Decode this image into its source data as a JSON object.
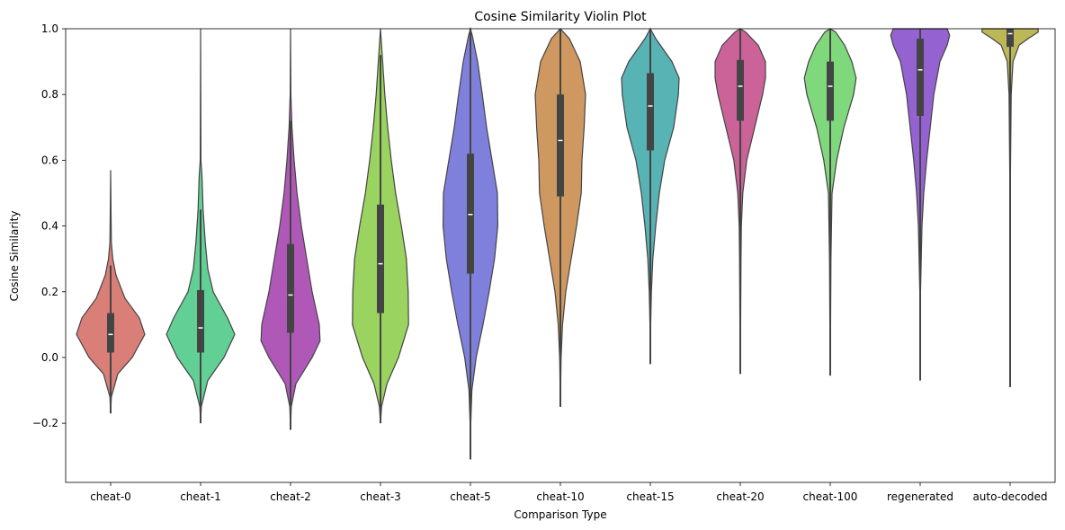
{
  "chart_data": {
    "type": "violin",
    "title": "Cosine Similarity Violin Plot",
    "xlabel": "Comparison Type",
    "ylabel": "Cosine Similarity",
    "ylim": [
      -0.38,
      1.0
    ],
    "yticks": [
      -0.2,
      0.0,
      0.2,
      0.4,
      0.6,
      0.8,
      1.0
    ],
    "ytick_labels": [
      "−0.2",
      "0.0",
      "0.2",
      "0.4",
      "0.6",
      "0.8",
      "1.0"
    ],
    "grid": false,
    "categories": [
      "cheat-0",
      "cheat-1",
      "cheat-2",
      "cheat-3",
      "cheat-5",
      "cheat-10",
      "cheat-15",
      "cheat-20",
      "cheat-100",
      "regenerated",
      "auto-decoded"
    ],
    "series": [
      {
        "name": "cheat-0",
        "color": "#d97f78",
        "min": -0.17,
        "q1": 0.015,
        "median": 0.07,
        "q3": 0.135,
        "whisker_low": -0.17,
        "whisker_high": 0.28,
        "density": [
          [
            -0.17,
            0
          ],
          [
            -0.12,
            0.02
          ],
          [
            -0.05,
            0.2
          ],
          [
            0.0,
            0.6
          ],
          [
            0.07,
            0.95
          ],
          [
            0.12,
            0.8
          ],
          [
            0.18,
            0.4
          ],
          [
            0.25,
            0.15
          ],
          [
            0.3,
            0.06
          ],
          [
            0.35,
            0.02
          ],
          [
            0.45,
            0.01
          ],
          [
            0.57,
            0
          ]
        ]
      },
      {
        "name": "cheat-1",
        "color": "#62cf95",
        "min": -0.2,
        "q1": 0.015,
        "median": 0.09,
        "q3": 0.205,
        "whisker_low": -0.2,
        "whisker_high": 0.45,
        "density": [
          [
            -0.2,
            0
          ],
          [
            -0.15,
            0.02
          ],
          [
            -0.07,
            0.2
          ],
          [
            0.0,
            0.65
          ],
          [
            0.07,
            0.95
          ],
          [
            0.12,
            0.75
          ],
          [
            0.2,
            0.35
          ],
          [
            0.27,
            0.2
          ],
          [
            0.35,
            0.13
          ],
          [
            0.45,
            0.07
          ],
          [
            0.55,
            0.04
          ],
          [
            0.6,
            0.01
          ],
          [
            0.8,
            0.005
          ],
          [
            1.0,
            0
          ]
        ]
      },
      {
        "name": "cheat-2",
        "color": "#b058b8",
        "min": -0.22,
        "q1": 0.075,
        "median": 0.19,
        "q3": 0.345,
        "whisker_low": -0.22,
        "whisker_high": 0.72,
        "density": [
          [
            -0.22,
            0
          ],
          [
            -0.15,
            0.02
          ],
          [
            -0.08,
            0.15
          ],
          [
            0.0,
            0.6
          ],
          [
            0.05,
            0.82
          ],
          [
            0.1,
            0.8
          ],
          [
            0.2,
            0.6
          ],
          [
            0.3,
            0.45
          ],
          [
            0.4,
            0.3
          ],
          [
            0.5,
            0.18
          ],
          [
            0.6,
            0.1
          ],
          [
            0.7,
            0.04
          ],
          [
            0.8,
            0.01
          ],
          [
            1.0,
            0
          ]
        ]
      },
      {
        "name": "cheat-3",
        "color": "#9ad35f",
        "min": -0.2,
        "q1": 0.135,
        "median": 0.285,
        "q3": 0.465,
        "whisker_low": -0.2,
        "whisker_high": 0.92,
        "density": [
          [
            -0.2,
            0
          ],
          [
            -0.15,
            0.03
          ],
          [
            -0.08,
            0.18
          ],
          [
            0.0,
            0.5
          ],
          [
            0.1,
            0.78
          ],
          [
            0.2,
            0.77
          ],
          [
            0.3,
            0.72
          ],
          [
            0.4,
            0.58
          ],
          [
            0.5,
            0.42
          ],
          [
            0.6,
            0.3
          ],
          [
            0.7,
            0.2
          ],
          [
            0.8,
            0.12
          ],
          [
            0.9,
            0.06
          ],
          [
            1.0,
            0
          ]
        ]
      },
      {
        "name": "cheat-5",
        "color": "#7f80dc",
        "min": -0.31,
        "q1": 0.255,
        "median": 0.435,
        "q3": 0.62,
        "whisker_low": -0.31,
        "whisker_high": 1.0,
        "density": [
          [
            -0.31,
            0
          ],
          [
            -0.2,
            0.01
          ],
          [
            -0.1,
            0.04
          ],
          [
            0.0,
            0.16
          ],
          [
            0.1,
            0.35
          ],
          [
            0.2,
            0.52
          ],
          [
            0.3,
            0.67
          ],
          [
            0.4,
            0.76
          ],
          [
            0.5,
            0.75
          ],
          [
            0.6,
            0.6
          ],
          [
            0.7,
            0.45
          ],
          [
            0.8,
            0.33
          ],
          [
            0.9,
            0.2
          ],
          [
            0.98,
            0.05
          ],
          [
            1.0,
            0
          ]
        ]
      },
      {
        "name": "cheat-10",
        "color": "#cf9860",
        "min": -0.15,
        "q1": 0.49,
        "median": 0.66,
        "q3": 0.8,
        "whisker_low": -0.15,
        "whisker_high": 1.0,
        "density": [
          [
            -0.15,
            0
          ],
          [
            0.0,
            0.02
          ],
          [
            0.1,
            0.06
          ],
          [
            0.2,
            0.15
          ],
          [
            0.3,
            0.3
          ],
          [
            0.4,
            0.45
          ],
          [
            0.5,
            0.58
          ],
          [
            0.6,
            0.6
          ],
          [
            0.7,
            0.66
          ],
          [
            0.8,
            0.7
          ],
          [
            0.9,
            0.55
          ],
          [
            0.97,
            0.25
          ],
          [
            1.0,
            0
          ]
        ]
      },
      {
        "name": "cheat-15",
        "color": "#58b3b5",
        "min": -0.02,
        "q1": 0.63,
        "median": 0.765,
        "q3": 0.865,
        "whisker_low": -0.02,
        "whisker_high": 1.0,
        "density": [
          [
            -0.02,
            0
          ],
          [
            0.1,
            0.01
          ],
          [
            0.2,
            0.03
          ],
          [
            0.3,
            0.07
          ],
          [
            0.4,
            0.15
          ],
          [
            0.5,
            0.25
          ],
          [
            0.6,
            0.4
          ],
          [
            0.7,
            0.65
          ],
          [
            0.8,
            0.78
          ],
          [
            0.85,
            0.8
          ],
          [
            0.9,
            0.6
          ],
          [
            0.97,
            0.15
          ],
          [
            1.0,
            0
          ]
        ]
      },
      {
        "name": "cheat-20",
        "color": "#cc6398",
        "min": -0.05,
        "q1": 0.72,
        "median": 0.825,
        "q3": 0.905,
        "whisker_low": -0.05,
        "whisker_high": 1.0,
        "density": [
          [
            -0.05,
            0
          ],
          [
            0.1,
            0.01
          ],
          [
            0.3,
            0.02
          ],
          [
            0.4,
            0.03
          ],
          [
            0.5,
            0.07
          ],
          [
            0.6,
            0.18
          ],
          [
            0.7,
            0.4
          ],
          [
            0.8,
            0.62
          ],
          [
            0.85,
            0.7
          ],
          [
            0.9,
            0.7
          ],
          [
            0.95,
            0.5
          ],
          [
            0.99,
            0.15
          ],
          [
            1.0,
            0
          ]
        ]
      },
      {
        "name": "cheat-100",
        "color": "#7fd87c",
        "min": -0.055,
        "q1": 0.72,
        "median": 0.825,
        "q3": 0.9,
        "whisker_low": -0.055,
        "whisker_high": 1.0,
        "density": [
          [
            -0.055,
            0
          ],
          [
            0.1,
            0.01
          ],
          [
            0.3,
            0.02
          ],
          [
            0.5,
            0.05
          ],
          [
            0.6,
            0.18
          ],
          [
            0.7,
            0.38
          ],
          [
            0.8,
            0.65
          ],
          [
            0.85,
            0.72
          ],
          [
            0.9,
            0.6
          ],
          [
            0.95,
            0.4
          ],
          [
            0.99,
            0.15
          ],
          [
            1.0,
            0
          ]
        ]
      },
      {
        "name": "regenerated",
        "color": "#9562d1",
        "min": -0.07,
        "q1": 0.735,
        "median": 0.875,
        "q3": 0.97,
        "whisker_low": -0.07,
        "whisker_high": 1.0,
        "density": [
          [
            -0.07,
            0
          ],
          [
            0.2,
            0.01
          ],
          [
            0.4,
            0.05
          ],
          [
            0.5,
            0.1
          ],
          [
            0.6,
            0.18
          ],
          [
            0.7,
            0.28
          ],
          [
            0.8,
            0.38
          ],
          [
            0.9,
            0.55
          ],
          [
            0.95,
            0.75
          ],
          [
            0.98,
            0.82
          ],
          [
            1.0,
            0.75
          ]
        ]
      },
      {
        "name": "auto-decoded",
        "color": "#bcb858",
        "min": -0.09,
        "q1": 0.945,
        "median": 0.985,
        "q3": 1.0,
        "whisker_low": -0.09,
        "whisker_high": 1.0,
        "density": [
          [
            -0.09,
            0
          ],
          [
            0.5,
            0.005
          ],
          [
            0.8,
            0.03
          ],
          [
            0.9,
            0.08
          ],
          [
            0.95,
            0.25
          ],
          [
            0.97,
            0.5
          ],
          [
            0.99,
            0.78
          ],
          [
            1.0,
            0.78
          ]
        ]
      }
    ]
  }
}
